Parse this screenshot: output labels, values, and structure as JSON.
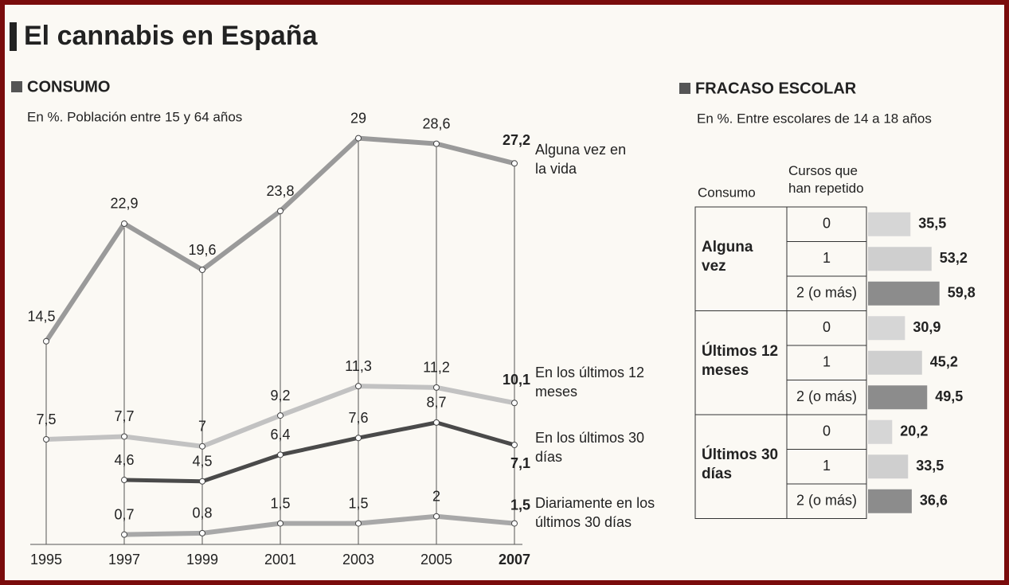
{
  "title": "El cannabis en España",
  "chart_data": [
    {
      "type": "line",
      "title": "CONSUMO",
      "subtitle": "En %. Población entre 15 y 64 años",
      "x": [
        1995,
        1997,
        1999,
        2001,
        2003,
        2005,
        2007
      ],
      "xlim": [
        1995,
        2007
      ],
      "xticks": [
        1995,
        1997,
        1999,
        2001,
        2003,
        2005,
        2007
      ],
      "ylim": [
        0,
        30
      ],
      "grid": true,
      "series": [
        {
          "name": "Alguna vez en la vida",
          "color": "#9a9a9a",
          "values": [
            14.5,
            22.9,
            19.6,
            23.8,
            29,
            28.6,
            27.2
          ],
          "value_labels": [
            "14,5",
            "22,9",
            "19,6",
            "23,8",
            "29",
            "28,6",
            "27,2"
          ]
        },
        {
          "name": "En los últimos 12 meses",
          "color": "#c2c2c2",
          "values": [
            7.5,
            7.7,
            7,
            9.2,
            11.3,
            11.2,
            10.1
          ],
          "value_labels": [
            "7,5",
            "7,7",
            "7",
            "9,2",
            "11,3",
            "11,2",
            "10,1"
          ]
        },
        {
          "name": "En los últimos 30 días",
          "color": "#4a4a4a",
          "values": [
            null,
            4.6,
            4.5,
            6.4,
            7.6,
            8.7,
            7.1
          ],
          "value_labels": [
            null,
            "4,6",
            "4,5",
            "6,4",
            "7,6",
            "8,7",
            "7,1"
          ]
        },
        {
          "name": "Diariamente en los últimos 30 días",
          "color": "#a8a8a8",
          "values": [
            null,
            0.7,
            0.8,
            1.5,
            1.5,
            2,
            1.5
          ],
          "value_labels": [
            null,
            "0,7",
            "0,8",
            "1,5",
            "1,5",
            "2",
            "1,5"
          ]
        }
      ]
    },
    {
      "type": "bar",
      "title": "FRACASO ESCOLAR",
      "subtitle": "En %. Entre escolares de 14 a 18 años",
      "group_header": "Consumo",
      "category_header": "Cursos que han repetido",
      "xlim": [
        0,
        60
      ],
      "colors": [
        "#d6d6d6",
        "#cfcfcf",
        "#8c8c8c"
      ],
      "groups": [
        {
          "name": "Alguna vez",
          "categories": [
            "0",
            "1",
            "2 (o más)"
          ],
          "values": [
            35.5,
            53.2,
            59.8
          ],
          "value_labels": [
            "35,5",
            "53,2",
            "59,8"
          ]
        },
        {
          "name": "Últimos 12 meses",
          "categories": [
            "0",
            "1",
            "2 (o más)"
          ],
          "values": [
            30.9,
            45.2,
            49.5
          ],
          "value_labels": [
            "30,9",
            "45,2",
            "49,5"
          ]
        },
        {
          "name": "Últimos 30 días",
          "categories": [
            "0",
            "1",
            "2 (o más)"
          ],
          "values": [
            20.2,
            33.5,
            36.6
          ],
          "value_labels": [
            "20,2",
            "33,5",
            "36,6"
          ]
        }
      ]
    }
  ]
}
